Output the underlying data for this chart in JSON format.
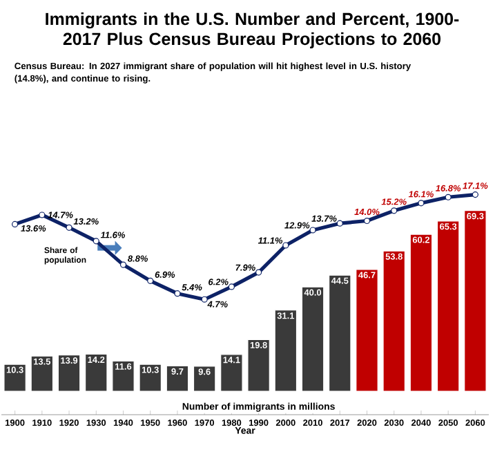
{
  "chart_data": {
    "type": "bar",
    "title": "Immigrants in the U.S. Number and Percent, 1900-2017 Plus Census Bureau Projections to 2060",
    "xlabel": "Year",
    "categories": [
      "1900",
      "1910",
      "1920",
      "1930",
      "1940",
      "1950",
      "1960",
      "1970",
      "1980",
      "1990",
      "2000",
      "2010",
      "2017",
      "2020",
      "2030",
      "2040",
      "2050",
      "2060"
    ],
    "tick_labels": "x",
    "series": [
      {
        "colors": [
          "#3a3a3a",
          "#3a3a3a",
          "#3a3a3a",
          "#3a3a3a",
          "#3a3a3a",
          "#3a3a3a",
          "#3a3a3a",
          "#3a3a3a",
          "#3a3a3a",
          "#3a3a3a",
          "#3a3a3a",
          "#3a3a3a",
          "#3a3a3a",
          "#c00000",
          "#c00000",
          "#c00000",
          "#c00000",
          "#c00000"
        ],
        "values": [
          10.3,
          13.5,
          13.9,
          14.2,
          11.6,
          10.3,
          9.7,
          9.6,
          14.1,
          19.8,
          31.1,
          40.0,
          44.5,
          46.7,
          53.8,
          60.2,
          65.3,
          69.3
        ],
        "value_labels": [
          "10.3",
          "13.5",
          "13.9",
          "14.2",
          "11.6",
          "10.3",
          "9.7",
          "9.6",
          "14.1",
          "19.8",
          "31.1",
          "40.0",
          "44.5",
          "46.7",
          "53.8",
          "60.2",
          "65.3",
          "69.3"
        ]
      },
      {
        "type": "line",
        "axis": "y2",
        "color": "#0d2266",
        "marker": "circle",
        "line_style": "solid",
        "values": [
          13.6,
          14.7,
          13.2,
          11.6,
          8.8,
          6.9,
          5.4,
          4.7,
          6.2,
          7.9,
          11.1,
          12.9,
          13.7,
          14.0,
          15.2,
          16.1,
          16.8,
          17.1
        ],
        "value_labels": [
          "13.6%",
          "14.7%",
          "13.2%",
          "11.6%",
          "8.8%",
          "6.9%",
          "5.4%",
          "4.7%",
          "6.2%",
          "7.9%",
          "11.1%",
          "12.9%",
          "13.7%",
          "14.0%",
          "15.2%",
          "16.1%",
          "16.8%",
          "17.1%"
        ]
      }
    ],
    "annotations": [
      "Census Bureau: In 2027 immigrant share of population will hit highest level in U.S. history (14.8%), and continue to rising.",
      "Share of population",
      "Number of immigrants in millions"
    ]
  }
}
